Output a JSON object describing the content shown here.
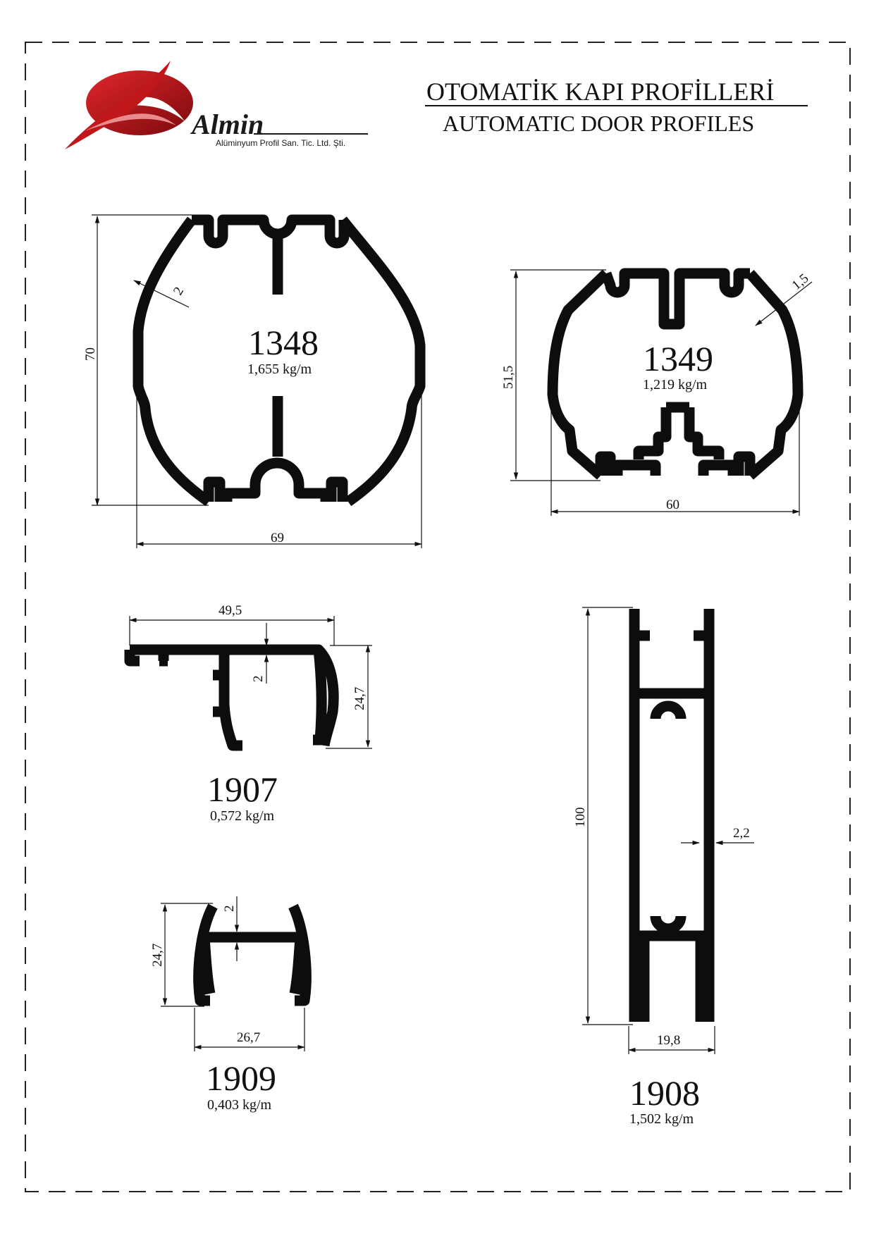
{
  "logo": {
    "brand": "Almin",
    "tagline": "Alüminyum Profil San. Tic. Ltd. Şti.",
    "colors": {
      "red": "#c0171b",
      "dark_red": "#7a0a0c",
      "text": "#1a1a1a"
    }
  },
  "header": {
    "title_tr": "OTOMATİK KAPI PROFİLLERİ",
    "title_en": "AUTOMATIC DOOR PROFILES"
  },
  "profiles": [
    {
      "id": "p1348",
      "code": "1348",
      "weight": "1,655 kg/m",
      "dims": {
        "width": "69",
        "height": "70",
        "wall": "2"
      }
    },
    {
      "id": "p1349",
      "code": "1349",
      "weight": "1,219 kg/m",
      "dims": {
        "width": "60",
        "height": "51,5",
        "wall": "1,5"
      }
    },
    {
      "id": "p1907",
      "code": "1907",
      "weight": "0,572 kg/m",
      "dims": {
        "width": "49,5",
        "height": "24,7",
        "wall": "2"
      }
    },
    {
      "id": "p1909",
      "code": "1909",
      "weight": "0,403 kg/m",
      "dims": {
        "width": "26,7",
        "height": "24,7",
        "wall": "2"
      }
    },
    {
      "id": "p1908",
      "code": "1908",
      "weight": "1,502 kg/m",
      "dims": {
        "width": "19,8",
        "height": "100",
        "wall": "2,2"
      }
    }
  ]
}
